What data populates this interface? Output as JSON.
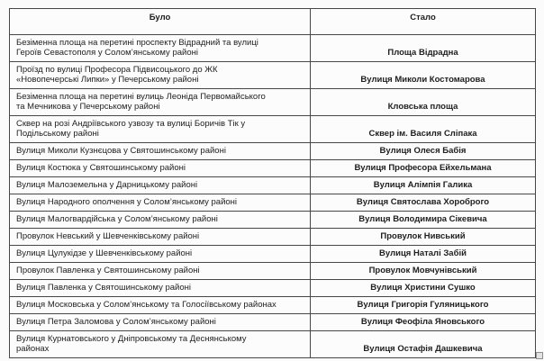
{
  "page": {
    "background": "#fbfbfb",
    "text_color": "#1e1e1e",
    "border_color": "#474747"
  },
  "table": {
    "headers": {
      "before": "Було",
      "after": "Стало"
    },
    "rows": [
      {
        "before": "Безіменна площа на перетині проспекту Відрадний та вулиці\nГероїв Севастополя у Солом’янському районі",
        "after": "Площа Відрадна"
      },
      {
        "before": "Проїзд по вулиці Професора Підвисоцького до ЖК\n«Новопечерські Липки» у Печерському районі",
        "after": "Вулиця Миколи Костомарова"
      },
      {
        "before": "Безіменна площа на перетині вулиць Леоніда Первомайського\nта Мечникова у Печерському районі",
        "after": "Кловська площа"
      },
      {
        "before": "Сквер на розі Андріївського узвозу та вулиці Боричів Тік у\nПодільському районі",
        "after": "Сквер ім. Василя Сліпака"
      },
      {
        "before": "Вулиця Миколи Кузнєцова у Святошинському районі",
        "after": "Вулиця Олеся Бабія"
      },
      {
        "before": "Вулиця Костюка у Святошинському районі",
        "after": "Вулиця Професора Ейхельмана"
      },
      {
        "before": "Вулиця Малоземельна у Дарницькому районі",
        "after": "Вулиця Алімпія Галика"
      },
      {
        "before": "Вулиця Народного ополчення у Солом’янському районі",
        "after": "Вулиця Святослава Хороброго"
      },
      {
        "before": "Вулиця Малогвардійська у Солом’янському районі",
        "after": "Вулиця Володимира Сікевича"
      },
      {
        "before": "Провулок Невський у Шевченківському районі",
        "after": "Провулок Нивський"
      },
      {
        "before": "Вулиця Цулукідзе у Шевченківському районі",
        "after": "Вулиця Наталі Забій"
      },
      {
        "before": "Провулок Павленка у Святошинському районі",
        "after": "Провулок Мовчунівський"
      },
      {
        "before": "Вулиця Павленка у Святошинському районі",
        "after": "Вулиця Христини Сушко"
      },
      {
        "before": "Вулиця Московська у Солом’янському та Голосіївському районах",
        "after": "Вулиця Григорія Гуляницького"
      },
      {
        "before": "Вулиця Петра Заломова у Солом’янському районі",
        "after": "Вулиця Феофіла Яновського"
      },
      {
        "before": "Вулиця Курнатовського у Дніпровському та Деснянському\nрайонах",
        "after": "Вулиця Остафія Дашкевича"
      }
    ]
  }
}
